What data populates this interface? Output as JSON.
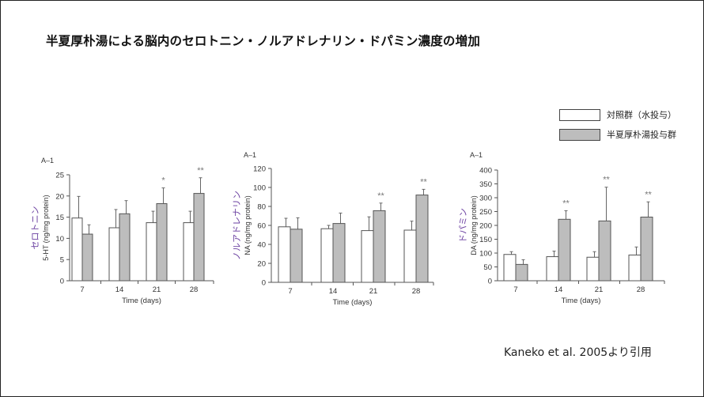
{
  "title": "半夏厚朴湯による脳内のセロトニン・ノルアドレナリン・ドパミン濃度の増加",
  "legend": [
    {
      "label": "対照群（水投与）",
      "color": "#ffffff"
    },
    {
      "label": "半夏厚朴湯投与群",
      "color": "#bdbdbd"
    }
  ],
  "citation": "Kaneko et al. 2005より引用",
  "chart_data": [
    {
      "type": "bar",
      "panel_label": "A–1",
      "annotation_label": "セロトニン",
      "ylabel": "5-HT (ng/mg protein)",
      "xlabel": "Time (days)",
      "categories": [
        "7",
        "14",
        "21",
        "28"
      ],
      "ylim": [
        0,
        25
      ],
      "yticks": [
        0,
        5,
        10,
        15,
        20,
        25
      ],
      "series": [
        {
          "values": [
            14.8,
            12.5,
            13.7,
            13.7
          ],
          "error_top": [
            19.9,
            16.8,
            16.4,
            16.4
          ]
        },
        {
          "values": [
            11.0,
            15.8,
            18.2,
            20.6
          ],
          "error_top": [
            13.2,
            18.9,
            21.9,
            24.3
          ]
        }
      ],
      "significance": [
        "",
        "",
        "*",
        "**"
      ]
    },
    {
      "type": "bar",
      "panel_label": "A–1",
      "annotation_label": "ノルアドレナリン",
      "ylabel": "NA (ng/mg protein)",
      "xlabel": "Time (days)",
      "categories": [
        "7",
        "14",
        "21",
        "28"
      ],
      "ylim": [
        0,
        120
      ],
      "yticks": [
        0,
        20,
        40,
        60,
        80,
        100,
        120
      ],
      "series": [
        {
          "values": [
            58.5,
            56.5,
            54.5,
            55
          ],
          "error_top": [
            67.5,
            60,
            69,
            64.5
          ]
        },
        {
          "values": [
            56,
            62,
            75.5,
            92
          ],
          "error_top": [
            68,
            73,
            83.5,
            98
          ]
        }
      ],
      "significance": [
        "",
        "",
        "**",
        "**"
      ]
    },
    {
      "type": "bar",
      "panel_label": "A–1",
      "annotation_label": "ドパミン",
      "ylabel": "DA (ng/mg protein)",
      "xlabel": "Time (days)",
      "categories": [
        "7",
        "14",
        "21",
        "28"
      ],
      "ylim": [
        0,
        400
      ],
      "yticks": [
        0,
        50,
        100,
        150,
        200,
        250,
        300,
        350,
        400
      ],
      "series": [
        {
          "values": [
            95,
            87,
            85,
            93
          ],
          "error_top": [
            105,
            107,
            105,
            122
          ]
        },
        {
          "values": [
            59,
            222,
            216,
            230
          ],
          "error_top": [
            76,
            253,
            338,
            285
          ]
        }
      ],
      "significance": [
        "",
        "**",
        "**",
        "**"
      ]
    }
  ]
}
